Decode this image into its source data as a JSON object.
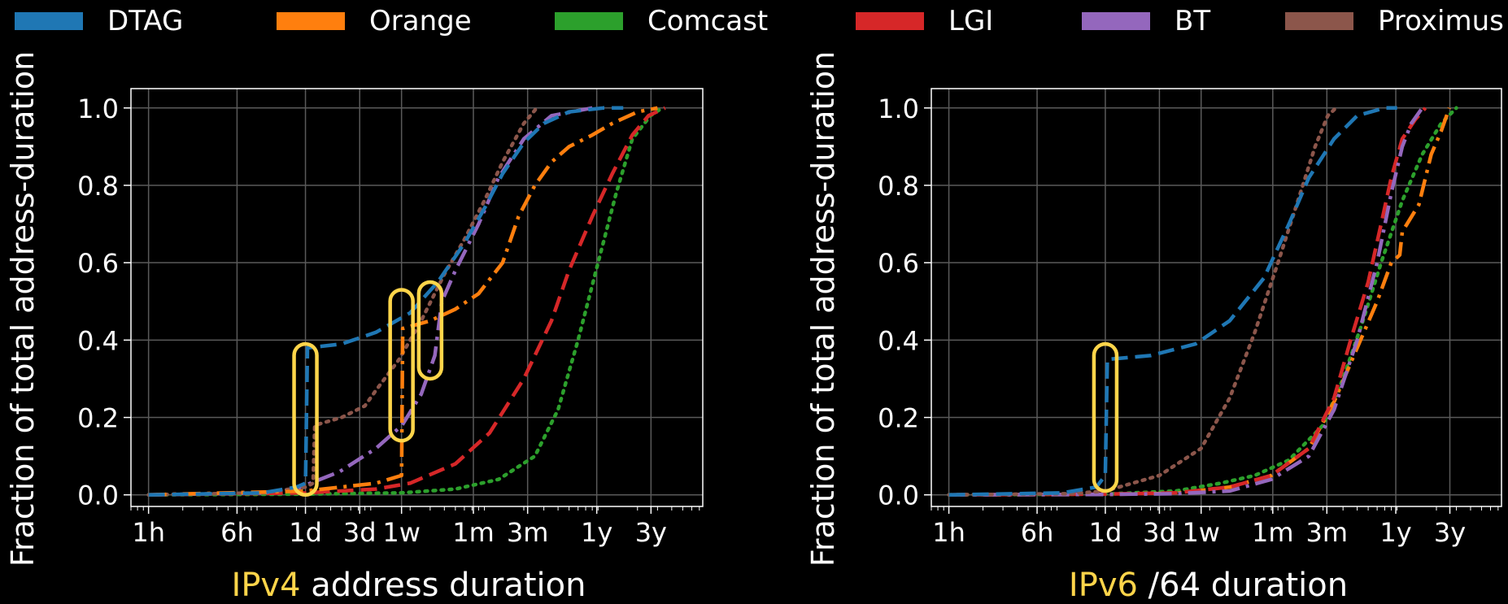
{
  "legend": [
    {
      "name": "DTAG",
      "color": "#1f77b4"
    },
    {
      "name": "Orange",
      "color": "#ff7f0e"
    },
    {
      "name": "Comcast",
      "color": "#2ca02c"
    },
    {
      "name": "LGI",
      "color": "#d62728"
    },
    {
      "name": "BT",
      "color": "#9467bd"
    },
    {
      "name": "Proximus",
      "color": "#8c564b"
    }
  ],
  "highlight_color": "#ffd54a",
  "chart_data": [
    {
      "type": "line",
      "xlabel_prefix": "IPv4",
      "xlabel_rest": " address duration",
      "ylabel": "Fraction of total address-duration",
      "x_scale": "log",
      "x_unit": "hours",
      "xlim": [
        0.7,
        75000
      ],
      "ylim": [
        -0.03,
        1.05
      ],
      "x_ticks": [
        {
          "label": "1h",
          "value": 1
        },
        {
          "label": "6h",
          "value": 6
        },
        {
          "label": "1d",
          "value": 24
        },
        {
          "label": "3d",
          "value": 72
        },
        {
          "label": "1w",
          "value": 168
        },
        {
          "label": "1m",
          "value": 720
        },
        {
          "label": "3m",
          "value": 2160
        },
        {
          "label": "1y",
          "value": 8760
        },
        {
          "label": "3y",
          "value": 26280
        }
      ],
      "y_ticks": [
        "0.0",
        "0.2",
        "0.4",
        "0.6",
        "0.8",
        "1.0"
      ],
      "grid": true,
      "series": [
        {
          "name": "Comcast",
          "style": "dotted",
          "points": [
            [
              1,
              0
            ],
            [
              24,
              0.002
            ],
            [
              168,
              0.005
            ],
            [
              500,
              0.015
            ],
            [
              1200,
              0.04
            ],
            [
              2500,
              0.1
            ],
            [
              4000,
              0.22
            ],
            [
              6000,
              0.4
            ],
            [
              9000,
              0.6
            ],
            [
              13000,
              0.78
            ],
            [
              18000,
              0.92
            ],
            [
              26000,
              0.98
            ],
            [
              33000,
              1.0
            ]
          ]
        },
        {
          "name": "LGI",
          "style": "dashed",
          "points": [
            [
              1,
              0
            ],
            [
              24,
              0.005
            ],
            [
              100,
              0.015
            ],
            [
              200,
              0.03
            ],
            [
              500,
              0.08
            ],
            [
              1000,
              0.16
            ],
            [
              2000,
              0.3
            ],
            [
              3500,
              0.45
            ],
            [
              5000,
              0.58
            ],
            [
              8000,
              0.72
            ],
            [
              12000,
              0.83
            ],
            [
              18000,
              0.93
            ],
            [
              25000,
              0.98
            ],
            [
              35000,
              1.0
            ]
          ]
        },
        {
          "name": "BT",
          "style": "dashdot",
          "points": [
            [
              1,
              0
            ],
            [
              10,
              0.005
            ],
            [
              20,
              0.015
            ],
            [
              24,
              0.025
            ],
            [
              48,
              0.06
            ],
            [
              100,
              0.12
            ],
            [
              170,
              0.18
            ],
            [
              250,
              0.26
            ],
            [
              330,
              0.36
            ],
            [
              380,
              0.5
            ],
            [
              500,
              0.58
            ],
            [
              800,
              0.7
            ],
            [
              1200,
              0.82
            ],
            [
              2000,
              0.92
            ],
            [
              3500,
              0.98
            ],
            [
              8000,
              1.0
            ]
          ]
        },
        {
          "name": "Proximus",
          "style": "dotted",
          "points": [
            [
              1,
              0
            ],
            [
              10,
              0.005
            ],
            [
              24,
              0.02
            ],
            [
              28,
              0.03
            ],
            [
              29,
              0.18
            ],
            [
              50,
              0.2
            ],
            [
              80,
              0.23
            ],
            [
              100,
              0.27
            ],
            [
              160,
              0.35
            ],
            [
              250,
              0.45
            ],
            [
              400,
              0.57
            ],
            [
              600,
              0.66
            ],
            [
              900,
              0.76
            ],
            [
              1300,
              0.86
            ],
            [
              2000,
              0.96
            ],
            [
              2600,
              1.0
            ]
          ]
        },
        {
          "name": "Orange",
          "style": "dashdot",
          "points": [
            [
              1,
              0
            ],
            [
              24,
              0.01
            ],
            [
              100,
              0.03
            ],
            [
              168,
              0.05
            ],
            [
              172,
              0.43
            ],
            [
              300,
              0.45
            ],
            [
              500,
              0.48
            ],
            [
              800,
              0.52
            ],
            [
              1300,
              0.6
            ],
            [
              1800,
              0.72
            ],
            [
              2500,
              0.8
            ],
            [
              3500,
              0.86
            ],
            [
              5000,
              0.9
            ],
            [
              8000,
              0.93
            ],
            [
              12000,
              0.96
            ],
            [
              20000,
              0.99
            ],
            [
              30000,
              1.0
            ]
          ]
        },
        {
          "name": "DTAG",
          "style": "dashed",
          "points": [
            [
              1,
              0
            ],
            [
              10,
              0.005
            ],
            [
              20,
              0.02
            ],
            [
              24,
              0.03
            ],
            [
              25,
              0.38
            ],
            [
              50,
              0.39
            ],
            [
              100,
              0.42
            ],
            [
              200,
              0.47
            ],
            [
              350,
              0.55
            ],
            [
              600,
              0.65
            ],
            [
              900,
              0.74
            ],
            [
              1300,
              0.83
            ],
            [
              2000,
              0.91
            ],
            [
              3000,
              0.96
            ],
            [
              5000,
              0.99
            ],
            [
              10000,
              1.0
            ],
            [
              15000,
              1.0
            ]
          ]
        }
      ],
      "highlights": [
        {
          "x": 24,
          "y0": 0.0,
          "y1": 0.39
        },
        {
          "x": 168,
          "y0": 0.14,
          "y1": 0.53
        },
        {
          "x": 300,
          "y0": 0.3,
          "y1": 0.55
        }
      ]
    },
    {
      "type": "line",
      "xlabel_prefix": "IPv6",
      "xlabel_rest": " /64 duration",
      "ylabel": "Fraction of total address-duration",
      "x_scale": "log",
      "x_unit": "hours",
      "xlim": [
        0.7,
        75000
      ],
      "ylim": [
        -0.03,
        1.05
      ],
      "x_ticks": [
        {
          "label": "1h",
          "value": 1
        },
        {
          "label": "6h",
          "value": 6
        },
        {
          "label": "1d",
          "value": 24
        },
        {
          "label": "3d",
          "value": 72
        },
        {
          "label": "1w",
          "value": 168
        },
        {
          "label": "1m",
          "value": 720
        },
        {
          "label": "3m",
          "value": 2160
        },
        {
          "label": "1y",
          "value": 8760
        },
        {
          "label": "3y",
          "value": 26280
        }
      ],
      "y_ticks": [
        "0.0",
        "0.2",
        "0.4",
        "0.6",
        "0.8",
        "1.0"
      ],
      "grid": true,
      "series": [
        {
          "name": "Comcast",
          "style": "dotted",
          "points": [
            [
              1,
              0
            ],
            [
              24,
              0.002
            ],
            [
              100,
              0.01
            ],
            [
              250,
              0.03
            ],
            [
              500,
              0.05
            ],
            [
              1000,
              0.09
            ],
            [
              2000,
              0.18
            ],
            [
              3000,
              0.3
            ],
            [
              4500,
              0.45
            ],
            [
              6500,
              0.6
            ],
            [
              10000,
              0.76
            ],
            [
              15000,
              0.88
            ],
            [
              22000,
              0.96
            ],
            [
              30000,
              1.0
            ]
          ]
        },
        {
          "name": "Orange",
          "style": "dashdot",
          "points": [
            [
              1,
              0
            ],
            [
              24,
              0.001
            ],
            [
              100,
              0.004
            ],
            [
              300,
              0.02
            ],
            [
              700,
              0.05
            ],
            [
              1500,
              0.12
            ],
            [
              2500,
              0.24
            ],
            [
              4000,
              0.38
            ],
            [
              6000,
              0.5
            ],
            [
              8000,
              0.6
            ],
            [
              9500,
              0.62
            ],
            [
              10000,
              0.68
            ],
            [
              14000,
              0.75
            ],
            [
              18000,
              0.88
            ],
            [
              22000,
              0.94
            ],
            [
              26000,
              1.0
            ]
          ]
        },
        {
          "name": "LGI",
          "style": "dashed",
          "points": [
            [
              1,
              0
            ],
            [
              24,
              0.002
            ],
            [
              100,
              0.005
            ],
            [
              300,
              0.02
            ],
            [
              700,
              0.05
            ],
            [
              1500,
              0.12
            ],
            [
              2500,
              0.25
            ],
            [
              3500,
              0.4
            ],
            [
              5000,
              0.55
            ],
            [
              6500,
              0.7
            ],
            [
              8000,
              0.82
            ],
            [
              10000,
              0.92
            ],
            [
              13000,
              0.97
            ],
            [
              16000,
              1.0
            ]
          ]
        },
        {
          "name": "BT",
          "style": "dashdot",
          "points": [
            [
              1,
              0
            ],
            [
              24,
              0.001
            ],
            [
              100,
              0.003
            ],
            [
              300,
              0.01
            ],
            [
              700,
              0.04
            ],
            [
              1500,
              0.1
            ],
            [
              2500,
              0.22
            ],
            [
              4000,
              0.4
            ],
            [
              6000,
              0.6
            ],
            [
              8000,
              0.78
            ],
            [
              10000,
              0.9
            ],
            [
              12000,
              0.96
            ],
            [
              15000,
              1.0
            ]
          ]
        },
        {
          "name": "Proximus",
          "style": "dotted",
          "points": [
            [
              1,
              0
            ],
            [
              12,
              0.003
            ],
            [
              24,
              0.01
            ],
            [
              72,
              0.05
            ],
            [
              168,
              0.12
            ],
            [
              300,
              0.25
            ],
            [
              500,
              0.42
            ],
            [
              800,
              0.6
            ],
            [
              1200,
              0.76
            ],
            [
              1700,
              0.9
            ],
            [
              2200,
              0.98
            ],
            [
              2600,
              1.0
            ]
          ]
        },
        {
          "name": "DTAG",
          "style": "dashed",
          "points": [
            [
              1,
              0
            ],
            [
              10,
              0.005
            ],
            [
              20,
              0.02
            ],
            [
              24,
              0.05
            ],
            [
              25,
              0.35
            ],
            [
              60,
              0.36
            ],
            [
              150,
              0.39
            ],
            [
              300,
              0.45
            ],
            [
              600,
              0.56
            ],
            [
              1000,
              0.7
            ],
            [
              1500,
              0.82
            ],
            [
              2500,
              0.92
            ],
            [
              4000,
              0.98
            ],
            [
              7000,
              1.0
            ],
            [
              9000,
              1.0
            ]
          ]
        }
      ],
      "highlights": [
        {
          "x": 24,
          "y0": 0.01,
          "y1": 0.39
        }
      ]
    }
  ]
}
